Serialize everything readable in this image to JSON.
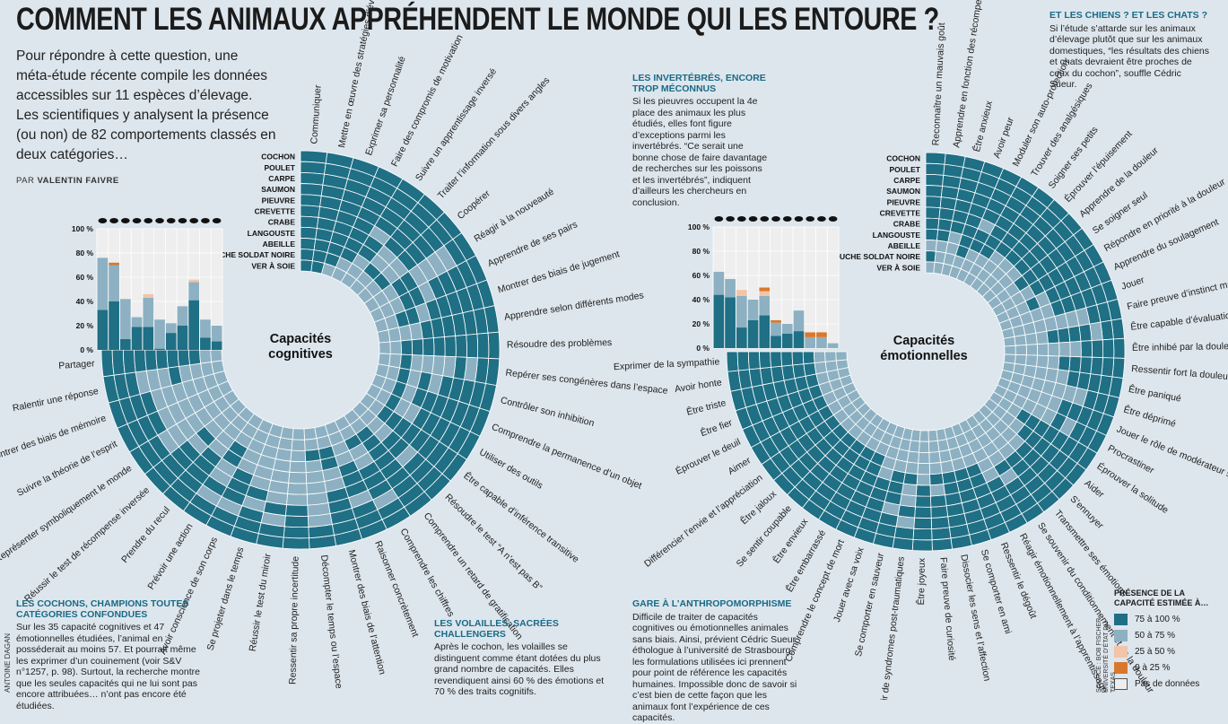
{
  "title": "COMMENT LES ANIMAUX APPRÉHENDENT LE MONDE QUI LES ENTOURE ?",
  "intro": "Pour répondre à cette question, une méta-étude récente compile les données accessibles sur 11 espèces d’élevage. Les scientifiques y analysent la présence (ou non) de 82 comportements classés en deux catégories…",
  "byline_prefix": "PAR ",
  "byline_author": "VALENTIN FAIVRE",
  "credit": "ANTOINE DAGAN",
  "source": "SOURCE : BOB FISCHER, UNIVERSITÉ D’ÉTAT DU TEXAS",
  "boxes": {
    "cochons": {
      "title": "LES COCHONS, CHAMPIONS TOUTES CATÉGORIES CONFONDUES",
      "text": "Sur les 35 capacité cognitives et 47 émotionnelles étudiées, l’animal en posséderait au moins 57. Et pourrait même les exprimer d’un couinement (voir S&V n°1257, p. 98). Surtout, la recherche montre que les seules capacités qui ne lui sont pas encore attribuées… n’ont pas encore été étudiées."
    },
    "volailles": {
      "title": "LES VOLAILLES, SACRÉES CHALLENGERS",
      "text": "Après le cochon, les volailles se distinguent comme étant dotées du plus grand nombre de capacités. Elles revendiquent ainsi 60 % des émotions et 70 % des traits cognitifs."
    },
    "invertebres": {
      "title": "LES INVERTÉBRÉS, ENCORE TROP MÉCONNUS",
      "text": "Si les pieuvres occupent la 4e place des animaux les plus étudiés, elles font figure d’exceptions parmi les invertébrés. “Ce serait une bonne chose de faire davantage de recherches sur les poissons et les invertébrés”, indiquent d’ailleurs les chercheurs en conclusion."
    },
    "anthropo": {
      "title": "GARE À L’ANTHROPOMORPHISME",
      "text": "Difficile de traiter de capacités cognitives ou émotionnelles animales sans biais. Ainsi, prévient Cédric Sueur, éthologue à l’université de Strasbourg, les formulations utilisées ici prennent pour point de référence les capacités humaines. Impossible donc de savoir si c’est bien de cette façon que les animaux font l’expérience de ces capacités."
    },
    "chiens": {
      "title": "ET LES CHIENS ? ET LES CHATS ?",
      "text": "Si l’étude s’attarde sur les animaux d’élevage plutôt que sur les animaux domestiques, “les résultats des chiens et chats devraient être proches de ceux du cochon”, souffle Cédric Sueur."
    }
  },
  "legend": {
    "title": "PRÉSENCE DE LA CAPACITÉ ESTIMÉE À…",
    "items": [
      {
        "label": "75 à 100 %",
        "color": "#1f6f85"
      },
      {
        "label": "50 à 75 %",
        "color": "#8db1c2"
      },
      {
        "label": "25 à 50 %",
        "color": "#f2c4a8"
      },
      {
        "label": "0 à 25 %",
        "color": "#d9782c"
      },
      {
        "label": "Pas de données",
        "color": "#eeeeee"
      }
    ]
  },
  "chart_data": [
    {
      "type": "heatmap",
      "title": "Capacités cognitives",
      "species": [
        "COCHON",
        "POULET",
        "CARPE",
        "SAUMON",
        "PIEUVRE",
        "CREVETTE",
        "CRABE",
        "LANGOUSTE",
        "ABEILLE",
        "MOUCHE SOLDAT NOIRE",
        "VER À SOIE"
      ],
      "capacities": [
        "Communiquer",
        "Mettre en œuvre des stratégies d’évitement",
        "Exprimer sa personnalité",
        "Faire des compromis de motivation",
        "Suivre un apprentissage inversé",
        "Traiter l’information sous divers angles",
        "Coopérer",
        "Réagir à la nouveauté",
        "Apprendre de ses pairs",
        "Montrer des biais de jugement",
        "Apprendre selon différents modes",
        "Résoudre des problèmes",
        "Repérer ses congénères dans l’espace",
        "Contrôler son inhibition",
        "Comprendre la permanence d’un objet",
        "Utiliser des outils",
        "Être capable d’inférence transitive",
        "Résoudre le test “A n’est pas B”",
        "Comprendre un retard de gratification",
        "Comprendre les chiffres",
        "Raisonner concrètement",
        "Montrer des biais de l’attention",
        "Décompter le temps ou l’espace",
        "Ressentir sa propre incertitude",
        "Réussir le test du miroir",
        "Se projeter dans le temps",
        "Avoir conscience de son corps",
        "Prévoir une action",
        "Prendre du recul",
        "Réussir le test de récompense inversée",
        "Représenter symboliquement le monde",
        "Suivre la théorie de l’esprit",
        "Montrer des biais de mémoire",
        "Ralentir une réponse",
        "Partager"
      ],
      "cells": [
        "AAAAAAAAAAAAAAAAAAAAAAAAAAAAAAAAAAA",
        "AAAAAAAAAAAAAAAAAAAAAAAAAAAAAAAAAAA",
        "AAAAAAABAAAABAAAAAABAABABABBAAAAAAA",
        "AAAAAAABAAAAAAAAAAAABABAABAAAABAABA",
        "AAAAAAABAAAABAAAABAAAABBBAABAABBBBA",
        "AAAABAABBAAABBAAAAAAABBBBBABABBBBBA",
        "AAAAABBAABAABAABAAABABBBBBBABABBBAA",
        "AAAAABBAAABABBBBABABBABBBBBABBBBBBA",
        "AAAABAABBABAAAAAABAABAABBBBBBBBBBBA",
        "AAABBBBBBBBBBBBBBBBBBBBBBBBBBBBBBBB",
        "AABBBBBBBBBBBBBBBBBBBBBBBBBBBBBBBBB"
      ],
      "bar_chart": {
        "type": "bar",
        "ylabel": "",
        "ylim": [
          0,
          100
        ],
        "ticks": [
          "0 %",
          "20 %",
          "40 %",
          "60 %",
          "80 %",
          "100 %"
        ],
        "categories": [
          "COCHON",
          "POULET",
          "CARPE",
          "SAUMON",
          "PIEUVRE",
          "CREVETTE",
          "CRABE",
          "LANGOUSTE",
          "ABEILLE",
          "MOUCHE SOLDAT NOIRE",
          "VER À SOIE"
        ],
        "series": [
          {
            "values": [
              33,
              40,
              9,
              19,
              19,
              1,
              14,
              20,
              41,
              10,
              7
            ]
          },
          {
            "values": [
              43,
              30,
              33,
              8,
              24,
              24,
              8,
              16,
              15,
              15,
              13
            ]
          },
          {
            "values": [
              0,
              0,
              0,
              0,
              3,
              0,
              0,
              0,
              2,
              0,
              0
            ]
          },
          {
            "values": [
              0,
              2,
              0,
              0,
              0,
              0,
              0,
              0,
              0,
              0,
              0
            ]
          }
        ]
      }
    },
    {
      "type": "heatmap",
      "title": "Capacités émotionnelles",
      "species": [
        "COCHON",
        "POULET",
        "CARPE",
        "SAUMON",
        "PIEUVRE",
        "CREVETTE",
        "CRABE",
        "LANGOUSTE",
        "ABEILLE",
        "MOUCHE SOLDAT NOIRE",
        "VER À SOIE"
      ],
      "capacities": [
        "Reconnaître un mauvais goût",
        "Apprendre en fonction des récompenses",
        "Être anxieux",
        "Avoir peur",
        "Moduler son auto-protection",
        "Trouver des analgésiques",
        "Soigner ses petits",
        "Éprouver l’épuisement",
        "Apprendre de la douleur",
        "Se soigner seul",
        "Répondre en priorité à la douleur",
        "Apprendre du soulagement",
        "Jouer",
        "Faire preuve d’instinct maternel",
        "Être capable d’évaluation",
        "Être inhibé par la douleur",
        "Ressentir fort la douleur",
        "Être paniqué",
        "Être déprimé",
        "Jouer le rôle de modérateur social",
        "Procrastiner",
        "Éprouver la solitude",
        "Aider",
        "S’ennuyer",
        "Transmettre ses émotions",
        "Se souvenir du conditionnement et de la douleur",
        "Réagir émotionnellement à l’apprentissage",
        "Ressentir le dégoût",
        "Se comporter en ami",
        "Dissocier les sens et l’affection",
        "Faire preuve de curiosité",
        "Être joyeux",
        "Souffrir de syndromes post-traumatiques",
        "Se comporter en sauveur",
        "Jouer avec sa voix",
        "Comprendre le concept de mort",
        "Être embarrassé",
        "Être envieux",
        "Se sentir coupable",
        "Être jaloux",
        "Différencier l’envie et l’appréciation",
        "Aimer",
        "Éprouver le deuil",
        "Être fier",
        "Être triste",
        "Avoir honte",
        "Exprimer de la sympathie"
      ],
      "cells": [
        "AAAAAAAAAAAAAAAAAAAAAAAAAAAAAAAAAAAAAAAAAAAAAAA",
        "AAAAAAAAAAAAAAAAAAAAAAAAAAAAAAAAAAAAAAAAAAAAAAA",
        "AAAAAAAAAAAAAABAAAAAAAAAAAAAAAAABAAAAAAAAAAAAAA",
        "AAAAAAAAAAAAABAAAABABAAAAAAAAAAAABAAAAAAAAAAAAA",
        "AAAAAAAAAAAAABABAABAAAAAABAAAAAABAAAAAAAAAAAAAA",
        "AAAABAAAAAAAABABABBBBAAAAABAAABABAAAAAAAAAAAAAA",
        "AAAAAAAAAAABBBABBBBBBAABBBBAAAABAABAAAAAAAAAAAA",
        "AABAAABBBABABBBBBBBBBABBBBBBBBBBBBBAAAAAAAAAAAA",
        "BBBABBBBBBBBBBBBBBBBBBBBBBBBBBBBBBBBBBBBBBBBBBB",
        "ABBBBBBBBBBBBBBBBBBBBBBBBBBBBBBBBBBBBBBBBBBBBBB",
        "BBBBBBBBBBBBBBBBBBBBBBBBBBBBBBBBBBBBBBBBBBBBBBB"
      ],
      "bar_chart": {
        "type": "bar",
        "ylabel": "",
        "ylim": [
          0,
          100
        ],
        "ticks": [
          "0 %",
          "20 %",
          "40 %",
          "60 %",
          "80 %",
          "100 %"
        ],
        "categories": [
          "COCHON",
          "POULET",
          "CARPE",
          "SAUMON",
          "PIEUVRE",
          "CREVETTE",
          "CRABE",
          "LANGOUSTE",
          "ABEILLE",
          "MOUCHE SOLDAT NOIRE",
          "VER À SOIE"
        ],
        "series": [
          {
            "values": [
              44,
              42,
              17,
              23,
              27,
              10,
              12,
              14,
              0,
              0,
              0
            ]
          },
          {
            "values": [
              19,
              15,
              26,
              17,
              16,
              11,
              8,
              17,
              9,
              9,
              4
            ]
          },
          {
            "values": [
              0,
              0,
              5,
              0,
              4,
              0,
              0,
              0,
              0,
              0,
              0
            ]
          },
          {
            "values": [
              0,
              0,
              0,
              0,
              3,
              2,
              0,
              0,
              4,
              4,
              0
            ]
          }
        ]
      }
    }
  ]
}
